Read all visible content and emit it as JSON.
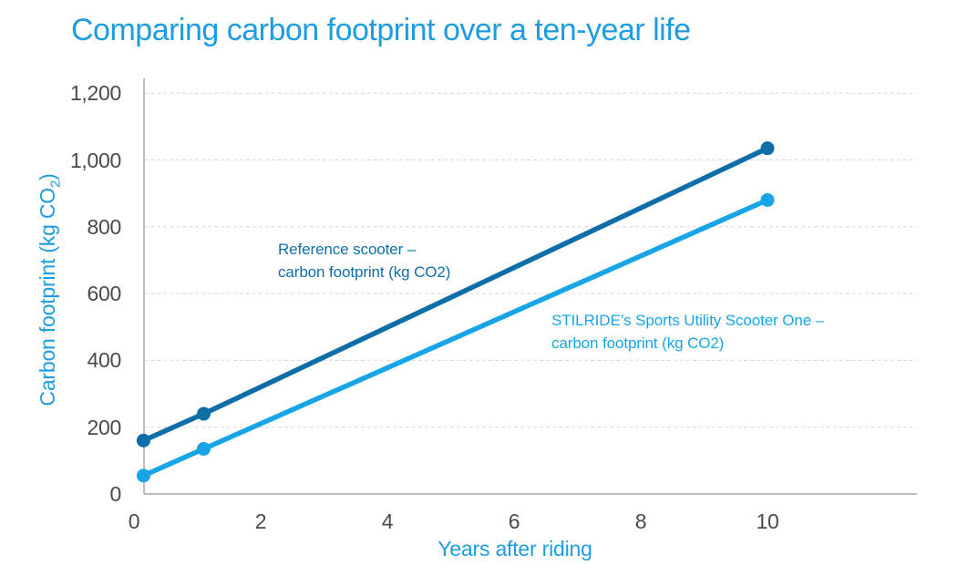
{
  "title": "Comparing carbon footprint over a ten-year life",
  "colors": {
    "title_blue": "#1e9ce2",
    "axis_title_blue": "#1e9ce2",
    "reference_dark_blue": "#0d6ea8",
    "stilride_light_blue": "#17a5e8",
    "tick_text_gray": "#4a4a4a",
    "axis_line_gray": "#a9a9a9",
    "gridline_gray": "#d9d9d9",
    "background": "#ffffff"
  },
  "chart_data": {
    "type": "line",
    "title": "Comparing carbon footprint over a ten-year life",
    "xlabel": "Years after riding",
    "ylabel": "Carbon footprint (kg CO2)",
    "ylabel_pre": "Carbon footprint (kg CO",
    "ylabel_sub": "2",
    "ylabel_post": ")",
    "x_tick_labels": [
      "0",
      "2",
      "4",
      "6",
      "8",
      "10"
    ],
    "x_tick_values": [
      0,
      2,
      4,
      6,
      8,
      10
    ],
    "y_tick_labels": [
      "0",
      "200",
      "400",
      "600",
      "800",
      "1,000",
      "1,200"
    ],
    "y_tick_values": [
      0,
      200,
      400,
      600,
      800,
      1000,
      1200
    ],
    "xlim": [
      0,
      12.4
    ],
    "ylim": [
      0,
      1240
    ],
    "grid": "horizontal-dashed",
    "legend_position": "inline-annotations",
    "series": [
      {
        "name": "Reference scooter – carbon footprint (kg CO2)",
        "annotation_line1": "Reference scooter –",
        "annotation_line2": "carbon footprint (kg CO2)",
        "color": "#0d6ea8",
        "marker": "circle",
        "points": [
          [
            0.15,
            160
          ],
          [
            1.1,
            240
          ],
          [
            10,
            1035
          ]
        ]
      },
      {
        "name": "STILRIDE’s Sports Utility Scooter One – carbon footprint (kg CO2)",
        "annotation_line1": "STILRIDE’s Sports Utility Scooter One –",
        "annotation_line2": "carbon footprint (kg CO2)",
        "color": "#17a5e8",
        "marker": "circle",
        "points": [
          [
            0.15,
            55
          ],
          [
            1.1,
            135
          ],
          [
            10,
            880
          ]
        ]
      }
    ]
  }
}
